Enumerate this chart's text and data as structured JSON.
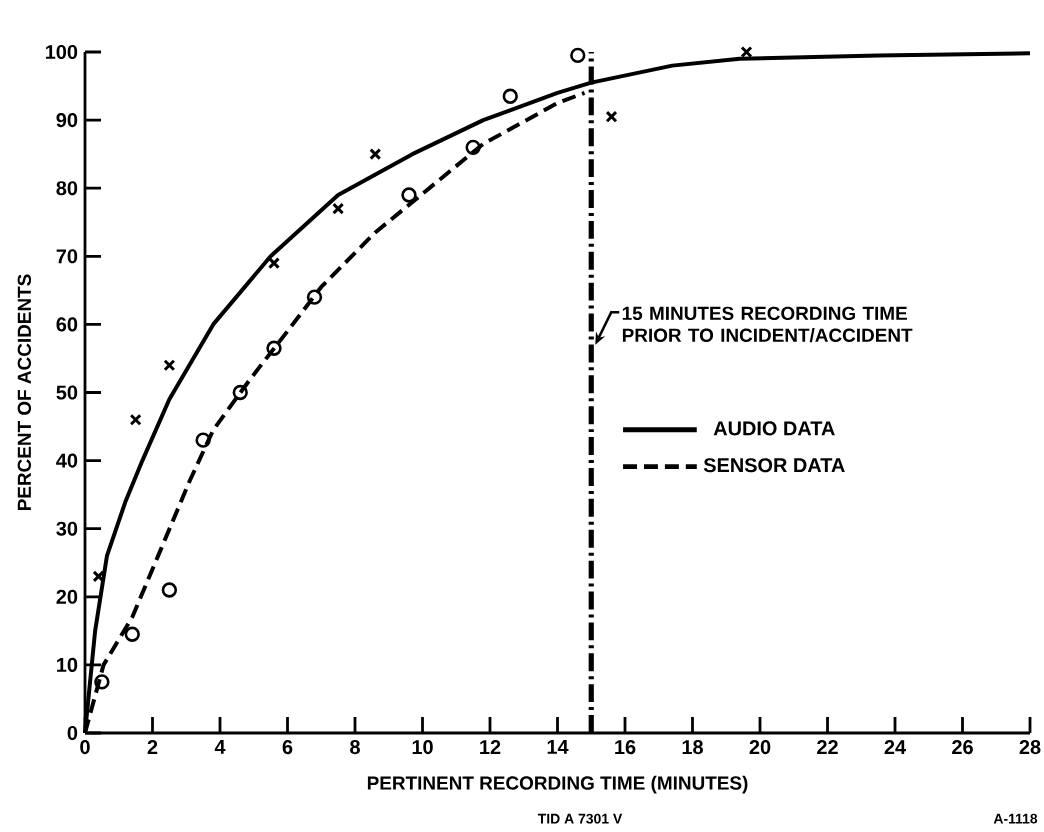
{
  "chart_data": {
    "type": "line",
    "xlabel": "PERTINENT RECORDING TIME (MINUTES)",
    "ylabel": "PERCENT OF ACCIDENTS",
    "xlim": [
      0,
      28
    ],
    "xticks": [
      0,
      2,
      4,
      6,
      8,
      10,
      12,
      14,
      16,
      18,
      20,
      22,
      24,
      26,
      28
    ],
    "ylim": [
      0,
      100
    ],
    "yticks": [
      0,
      10,
      20,
      30,
      40,
      50,
      60,
      70,
      80,
      90,
      100
    ],
    "legend": "right",
    "series": [
      {
        "name": "AUDIO DATA",
        "type": "line",
        "color": "#000000",
        "line_style": "solid",
        "marker": "none",
        "x": [
          0,
          0.3,
          0.65,
          1.2,
          1.7,
          2.5,
          3.8,
          5.5,
          7.5,
          9.7,
          11.8,
          14,
          15,
          17.4,
          19.4,
          23.5,
          28
        ],
        "values": [
          0,
          15,
          26,
          34,
          40,
          49,
          60,
          70,
          79,
          85,
          90,
          94,
          95.5,
          98,
          99,
          99.5,
          99.8
        ]
      },
      {
        "name": "SENSOR DATA",
        "type": "line",
        "color": "#000000",
        "line_style": "dashed",
        "marker": "none",
        "x": [
          0,
          0.55,
          1.4,
          2.25,
          3.1,
          3.8,
          4.9,
          6,
          7,
          8.6,
          10.2,
          11.8,
          14,
          14.8
        ],
        "values": [
          0,
          10,
          17,
          27,
          37,
          44.5,
          52,
          59,
          65.5,
          73.5,
          80,
          86.5,
          92.5,
          94
        ]
      },
      {
        "type": "scatter",
        "color": "#000000",
        "marker": "cross",
        "x": [
          0.4,
          1.5,
          2.5,
          5.6,
          7.5,
          8.6,
          15.6,
          19.6
        ],
        "values": [
          23,
          46,
          54,
          69,
          77,
          85,
          90.5,
          100
        ]
      },
      {
        "type": "scatter",
        "color": "#000000",
        "marker": "circle",
        "x": [
          0.5,
          1.4,
          2.5,
          3.5,
          4.6,
          5.6,
          6.8,
          9.6,
          11.5,
          12.6,
          14.6
        ],
        "values": [
          7.5,
          14.5,
          21,
          43,
          50,
          56.5,
          64,
          79,
          86,
          93.5,
          99.5
        ]
      }
    ],
    "ref_lines": [
      {
        "axis": "x",
        "value": 15,
        "label": "15 MINUTES RECORDING TIME PRIOR TO INCIDENT/ACCIDENT",
        "color": "#000000"
      }
    ],
    "annotations": [
      "TID A 7301 V",
      "A-1118"
    ]
  }
}
